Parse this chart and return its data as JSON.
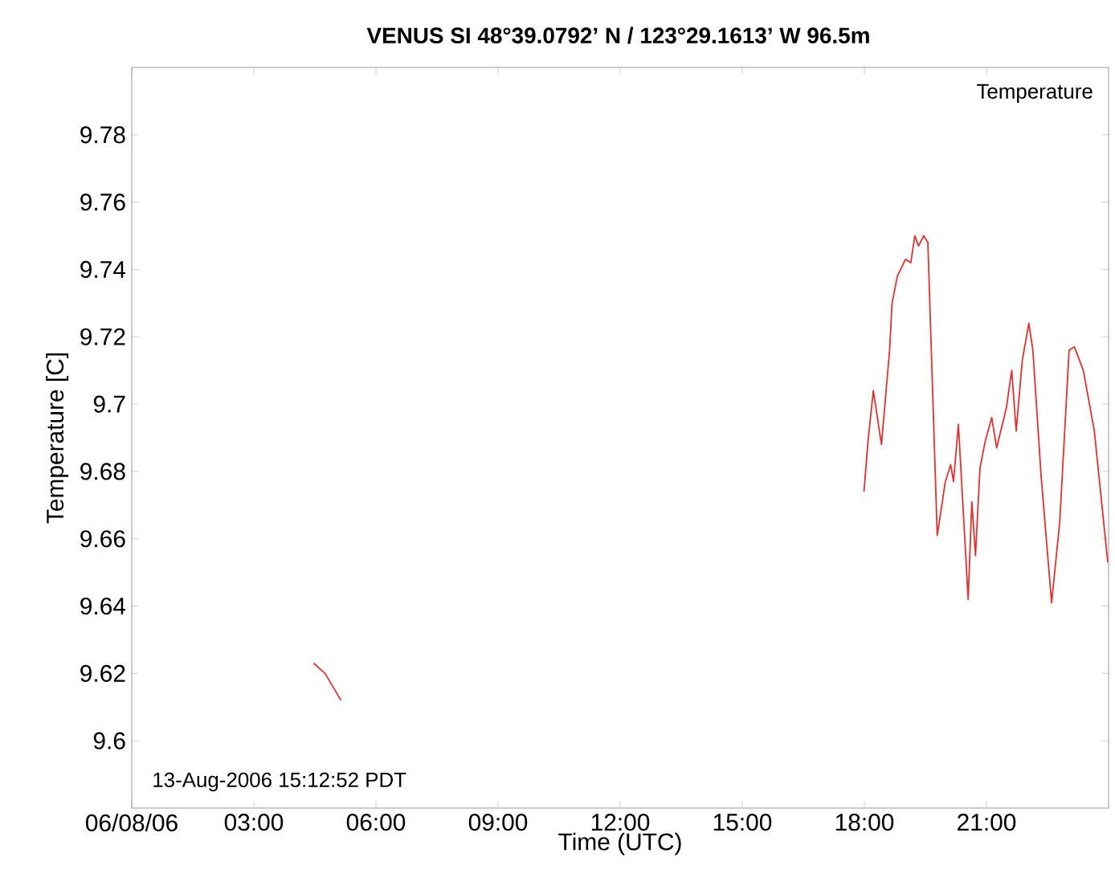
{
  "chart_data": {
    "type": "line",
    "title": "VENUS     SI     48°39.0792’ N / 123°29.1613’ W     96.5m",
    "xlabel": "Time (UTC)",
    "ylabel": "Temperature [C]",
    "annotations": [
      "Temperature",
      "13-Aug-2006 15:12:52 PDT"
    ],
    "color": "#e03030",
    "x": [
      4.47,
      4.75,
      5.14,
      11.5,
      17.99,
      18.09,
      18.22,
      18.42,
      18.62,
      18.68,
      18.81,
      19.01,
      19.14,
      19.24,
      19.33,
      19.46,
      19.56,
      19.79,
      19.99,
      20.12,
      20.19,
      20.31,
      20.55,
      20.64,
      20.73,
      20.84,
      20.97,
      21.13,
      21.25,
      21.49,
      21.62,
      21.73,
      21.88,
      22.04,
      22.14,
      22.34,
      22.6,
      22.8,
      23.03,
      23.16,
      23.38,
      23.65,
      23.98
    ],
    "values": [
      9.623,
      9.62,
      9.612,
      null,
      9.674,
      9.689,
      9.704,
      9.688,
      9.716,
      9.73,
      9.738,
      9.743,
      9.742,
      9.75,
      9.747,
      9.75,
      9.748,
      9.661,
      9.677,
      9.682,
      9.677,
      9.694,
      9.642,
      9.671,
      9.655,
      9.681,
      9.689,
      9.696,
      9.687,
      9.699,
      9.71,
      9.692,
      9.713,
      9.724,
      9.716,
      9.679,
      9.641,
      9.665,
      9.716,
      9.717,
      9.71,
      9.692,
      9.653
    ],
    "xlim": [
      0,
      24
    ],
    "ylim": [
      9.58,
      9.8
    ],
    "xticks": [
      {
        "value": 0,
        "label": "06/08/06"
      },
      {
        "value": 3,
        "label": "03:00"
      },
      {
        "value": 6,
        "label": "06:00"
      },
      {
        "value": 9,
        "label": "09:00"
      },
      {
        "value": 12,
        "label": "12:00"
      },
      {
        "value": 15,
        "label": "15:00"
      },
      {
        "value": 18,
        "label": "18:00"
      },
      {
        "value": 21,
        "label": "21:00"
      }
    ],
    "yticks": [
      9.6,
      9.62,
      9.64,
      9.66,
      9.68,
      9.7,
      9.72,
      9.74,
      9.76,
      9.78
    ]
  }
}
